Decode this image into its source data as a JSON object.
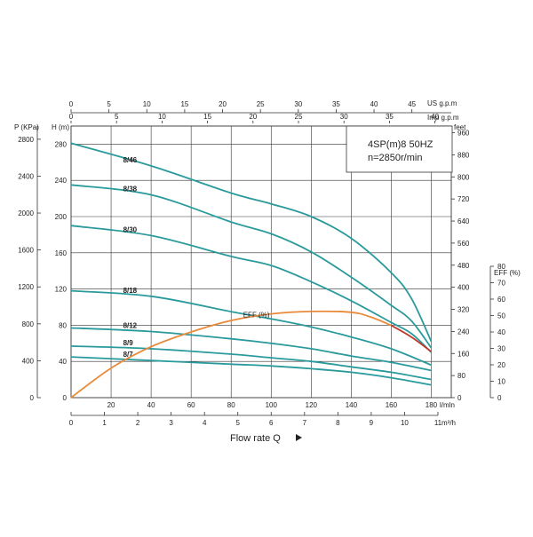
{
  "chart_data": {
    "type": "line",
    "info_box": {
      "model": "4SP(m)8  50HZ",
      "speed": "n=2850r/min"
    },
    "x_primary": {
      "unit": "l/mln",
      "range": [
        0,
        190
      ],
      "ticks": [
        0,
        20,
        40,
        60,
        80,
        100,
        120,
        140,
        160,
        180
      ]
    },
    "x_m3h": {
      "unit": "m³/h",
      "ticks": [
        0,
        1,
        2,
        3,
        4,
        5,
        6,
        7,
        8,
        9,
        10,
        11
      ]
    },
    "x_usgpm": {
      "unit": "US g.p.m",
      "ticks": [
        0,
        5,
        10,
        15,
        20,
        25,
        30,
        35,
        40,
        45
      ]
    },
    "x_impgpm": {
      "unit": "Imp g.p.m",
      "ticks": [
        0,
        5,
        10,
        15,
        20,
        25,
        30,
        35,
        40
      ]
    },
    "y_head": {
      "unit": "H (m)",
      "range": [
        0,
        300
      ],
      "ticks": [
        0,
        40,
        80,
        120,
        160,
        200,
        240,
        280
      ]
    },
    "y_pressure": {
      "unit": "P (KPa)",
      "ticks": [
        0,
        400,
        800,
        1200,
        1600,
        2000,
        2400,
        2800
      ]
    },
    "y_feet": {
      "unit": "feet",
      "ticks": [
        0,
        80,
        160,
        240,
        320,
        400,
        480,
        560,
        640,
        720,
        800,
        880,
        960
      ]
    },
    "y_eff": {
      "unit": "EFF (%)",
      "range": [
        0,
        80
      ],
      "ticks": [
        0,
        10,
        20,
        30,
        40,
        50,
        60,
        70,
        80
      ]
    },
    "flow_label": "Flow rate Q",
    "series": [
      {
        "name": "8/46",
        "x": [
          0,
          40,
          80,
          100,
          120,
          140,
          160,
          170,
          180
        ],
        "y": [
          281,
          256,
          226,
          214,
          200,
          176,
          138,
          110,
          62
        ]
      },
      {
        "name": "8/38",
        "x": [
          0,
          40,
          80,
          100,
          120,
          140,
          160,
          170,
          180
        ],
        "y": [
          235,
          224,
          194,
          181,
          161,
          133,
          102,
          85,
          55
        ]
      },
      {
        "name": "8/30",
        "x": [
          0,
          40,
          80,
          100,
          120,
          140,
          160,
          170,
          180
        ],
        "y": [
          190,
          179,
          156,
          146,
          128,
          107,
          83,
          71,
          50
        ]
      },
      {
        "name": "8/18",
        "x": [
          0,
          40,
          80,
          100,
          120,
          140,
          160,
          180
        ],
        "y": [
          118,
          112,
          95,
          87,
          78,
          67,
          54,
          36
        ]
      },
      {
        "name": "8/12",
        "x": [
          0,
          40,
          80,
          100,
          120,
          140,
          160,
          180
        ],
        "y": [
          77,
          73,
          65,
          60,
          54,
          46,
          39,
          30
        ]
      },
      {
        "name": "8/9",
        "x": [
          0,
          40,
          80,
          100,
          120,
          140,
          160,
          180
        ],
        "y": [
          57,
          54,
          48,
          44,
          40,
          34,
          28,
          20
        ]
      },
      {
        "name": "8/7",
        "x": [
          0,
          40,
          80,
          100,
          120,
          140,
          160,
          180
        ],
        "y": [
          45,
          41,
          37,
          35,
          32,
          28,
          22,
          14
        ]
      }
    ],
    "efficiency": {
      "label": "EFF (%)",
      "x": [
        0,
        20,
        40,
        60,
        80,
        100,
        120,
        140,
        150,
        160,
        170,
        180
      ],
      "y": [
        0,
        18,
        31,
        40,
        47,
        51,
        52.5,
        52,
        49,
        44,
        37,
        28
      ]
    },
    "colors": {
      "curves": "#2a9a9c",
      "efficiency": "#e88a3a",
      "efficiency_end": "#c0392b",
      "grid": "#333333"
    }
  }
}
